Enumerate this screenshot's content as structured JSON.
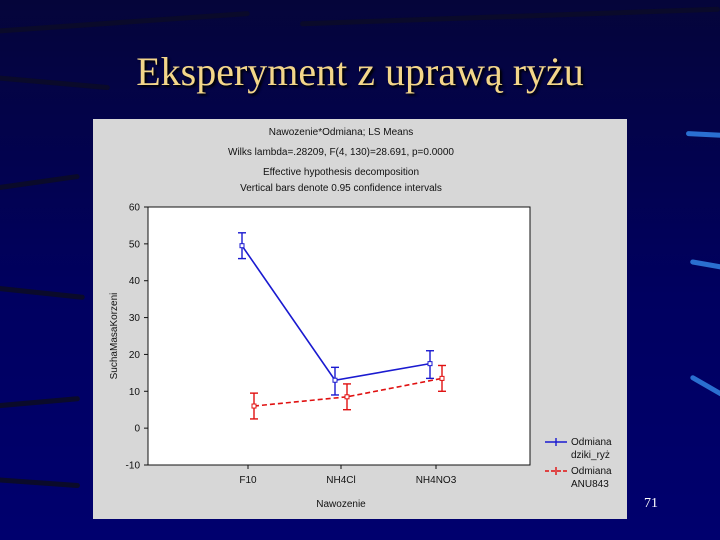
{
  "slide": {
    "title": "Eksperyment z uprawą ryżu",
    "page_number": "71",
    "background_color": "#000060",
    "title_color": "#f3d68a"
  },
  "chart_data": {
    "type": "line",
    "title_lines": [
      "Nawozenie*Odmiana; LS Means",
      "Wilks lambda=.28209, F(4, 130)=28.691, p=0.0000",
      "Effective hypothesis decomposition",
      "Vertical bars denote 0.95 confidence intervals"
    ],
    "xlabel": "Nawozenie",
    "ylabel": "SuchaMasaKorzeni",
    "categories": [
      "F10",
      "NH4Cl",
      "NH4NO3"
    ],
    "ylim": [
      -10,
      60
    ],
    "yticks": [
      "-10",
      "0",
      "10",
      "20",
      "30",
      "40",
      "50",
      "60"
    ],
    "grid": false,
    "legend_placement": "right-bottom",
    "series": [
      {
        "legend_label": "Odmiana",
        "legend_sublabel": "dziki_ryż",
        "color": "#1a1ad0",
        "line_style": "solid",
        "values": [
          49.5,
          13.0,
          17.5
        ],
        "ci_lower": [
          46.0,
          9.0,
          13.5
        ],
        "ci_upper": [
          53.0,
          16.5,
          21.0
        ]
      },
      {
        "legend_label": "Odmiana",
        "legend_sublabel": "ANU843",
        "color": "#e01010",
        "line_style": "dashed",
        "values": [
          6.0,
          8.5,
          13.5
        ],
        "ci_lower": [
          2.5,
          5.0,
          10.0
        ],
        "ci_upper": [
          9.5,
          12.0,
          17.0
        ]
      }
    ]
  }
}
